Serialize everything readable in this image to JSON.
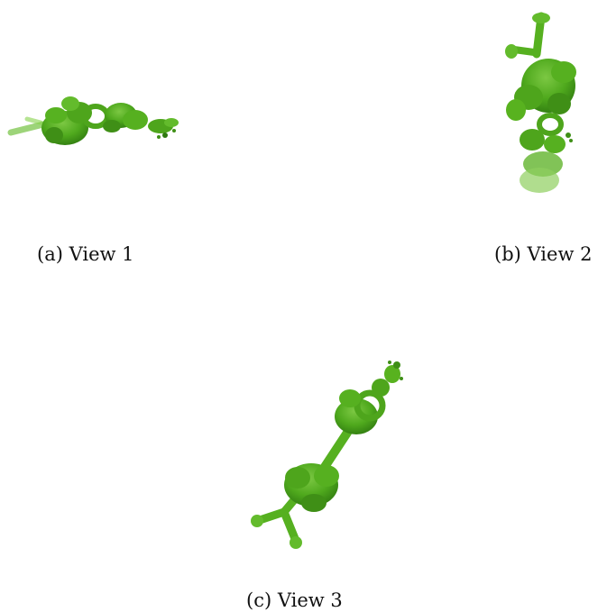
{
  "figure": {
    "panels": [
      {
        "id": "a",
        "caption": "(a) View 1",
        "image": "green-plant-point-cloud-horizontal"
      },
      {
        "id": "b",
        "caption": "(b) View 2",
        "image": "green-plant-point-cloud-vertical"
      },
      {
        "id": "c",
        "caption": "(c) View 3",
        "image": "green-plant-point-cloud-diagonal"
      }
    ]
  },
  "colors": {
    "plant_dark": "#3f8f16",
    "plant_mid": "#58b21f",
    "plant_light": "#86d24a",
    "background": "#ffffff"
  }
}
